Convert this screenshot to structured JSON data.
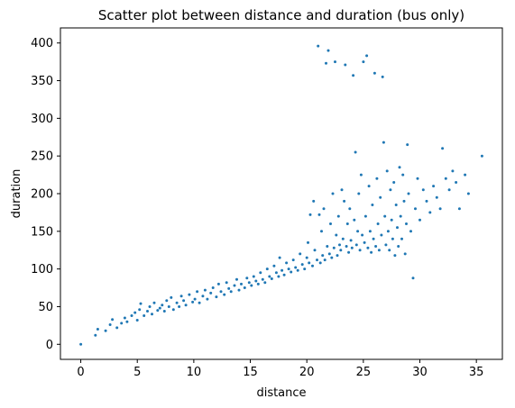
{
  "chart_data": {
    "type": "scatter",
    "title": "Scatter plot between distance and duration (bus only)",
    "xlabel": "distance",
    "ylabel": "duration",
    "xlim": [
      -1.8,
      37.3
    ],
    "ylim": [
      -20,
      420
    ],
    "xticks": [
      0,
      5,
      10,
      15,
      20,
      25,
      30,
      35
    ],
    "yticks": [
      0,
      50,
      100,
      150,
      200,
      250,
      300,
      350,
      400
    ],
    "grid": false,
    "legend": "none",
    "marker_color": "#1f77b4",
    "series": [
      {
        "points": [
          [
            0,
            0
          ],
          [
            1.3,
            12
          ],
          [
            1.5,
            20
          ],
          [
            2.2,
            18
          ],
          [
            2.6,
            26
          ],
          [
            2.8,
            33
          ],
          [
            3.2,
            22
          ],
          [
            3.6,
            28
          ],
          [
            3.9,
            35
          ],
          [
            4.1,
            30
          ],
          [
            4.5,
            38
          ],
          [
            4.8,
            42
          ],
          [
            5.0,
            32
          ],
          [
            5.2,
            46
          ],
          [
            5.3,
            54
          ],
          [
            5.6,
            38
          ],
          [
            5.9,
            44
          ],
          [
            6.1,
            50
          ],
          [
            6.3,
            40
          ],
          [
            6.5,
            55
          ],
          [
            6.8,
            45
          ],
          [
            7.0,
            48
          ],
          [
            7.2,
            52
          ],
          [
            7.4,
            44
          ],
          [
            7.6,
            58
          ],
          [
            7.8,
            50
          ],
          [
            8.0,
            62
          ],
          [
            8.2,
            46
          ],
          [
            8.5,
            55
          ],
          [
            8.7,
            50
          ],
          [
            8.9,
            64
          ],
          [
            9.1,
            58
          ],
          [
            9.3,
            52
          ],
          [
            9.6,
            66
          ],
          [
            9.9,
            56
          ],
          [
            10.1,
            60
          ],
          [
            10.3,
            70
          ],
          [
            10.5,
            55
          ],
          [
            10.8,
            64
          ],
          [
            11.0,
            72
          ],
          [
            11.2,
            60
          ],
          [
            11.5,
            68
          ],
          [
            11.7,
            75
          ],
          [
            12.0,
            63
          ],
          [
            12.2,
            80
          ],
          [
            12.4,
            70
          ],
          [
            12.7,
            66
          ],
          [
            12.9,
            82
          ],
          [
            13.1,
            74
          ],
          [
            13.3,
            70
          ],
          [
            13.6,
            78
          ],
          [
            13.8,
            86
          ],
          [
            14.0,
            72
          ],
          [
            14.2,
            80
          ],
          [
            14.5,
            75
          ],
          [
            14.7,
            88
          ],
          [
            14.9,
            82
          ],
          [
            15.1,
            78
          ],
          [
            15.3,
            90
          ],
          [
            15.5,
            84
          ],
          [
            15.7,
            80
          ],
          [
            15.9,
            95
          ],
          [
            16.1,
            86
          ],
          [
            16.3,
            82
          ],
          [
            16.5,
            100
          ],
          [
            16.7,
            90
          ],
          [
            16.9,
            87
          ],
          [
            17.1,
            104
          ],
          [
            17.3,
            95
          ],
          [
            17.5,
            90
          ],
          [
            17.6,
            115
          ],
          [
            17.8,
            98
          ],
          [
            18.0,
            92
          ],
          [
            18.2,
            108
          ],
          [
            18.4,
            100
          ],
          [
            18.6,
            96
          ],
          [
            18.8,
            112
          ],
          [
            19.0,
            102
          ],
          [
            19.2,
            98
          ],
          [
            19.4,
            120
          ],
          [
            19.6,
            106
          ],
          [
            19.8,
            100
          ],
          [
            20.0,
            115
          ],
          [
            20.1,
            135
          ],
          [
            20.2,
            108
          ],
          [
            20.3,
            172
          ],
          [
            20.5,
            104
          ],
          [
            20.6,
            190
          ],
          [
            20.7,
            125
          ],
          [
            20.9,
            112
          ],
          [
            21.0,
            396
          ],
          [
            21.1,
            172
          ],
          [
            21.2,
            108
          ],
          [
            21.3,
            150
          ],
          [
            21.4,
            118
          ],
          [
            21.5,
            180
          ],
          [
            21.6,
            112
          ],
          [
            21.7,
            373
          ],
          [
            21.8,
            130
          ],
          [
            21.9,
            390
          ],
          [
            22.0,
            120
          ],
          [
            22.1,
            160
          ],
          [
            22.2,
            115
          ],
          [
            22.3,
            200
          ],
          [
            22.4,
            128
          ],
          [
            22.5,
            375
          ],
          [
            22.6,
            145
          ],
          [
            22.7,
            118
          ],
          [
            22.8,
            170
          ],
          [
            22.9,
            132
          ],
          [
            23.0,
            125
          ],
          [
            23.1,
            205
          ],
          [
            23.2,
            140
          ],
          [
            23.3,
            190
          ],
          [
            23.4,
            371
          ],
          [
            23.5,
            130
          ],
          [
            23.6,
            160
          ],
          [
            23.7,
            122
          ],
          [
            23.8,
            180
          ],
          [
            23.9,
            138
          ],
          [
            24.0,
            128
          ],
          [
            24.1,
            357
          ],
          [
            24.2,
            165
          ],
          [
            24.3,
            255
          ],
          [
            24.4,
            132
          ],
          [
            24.5,
            150
          ],
          [
            24.6,
            200
          ],
          [
            24.7,
            125
          ],
          [
            24.8,
            225
          ],
          [
            24.9,
            145
          ],
          [
            25.0,
            375
          ],
          [
            25.1,
            135
          ],
          [
            25.2,
            170
          ],
          [
            25.3,
            383
          ],
          [
            25.4,
            128
          ],
          [
            25.5,
            210
          ],
          [
            25.6,
            150
          ],
          [
            25.7,
            122
          ],
          [
            25.8,
            185
          ],
          [
            25.9,
            140
          ],
          [
            26.0,
            360
          ],
          [
            26.1,
            130
          ],
          [
            26.2,
            220
          ],
          [
            26.3,
            160
          ],
          [
            26.4,
            125
          ],
          [
            26.5,
            195
          ],
          [
            26.6,
            145
          ],
          [
            26.7,
            355
          ],
          [
            26.8,
            268
          ],
          [
            26.9,
            170
          ],
          [
            27.0,
            132
          ],
          [
            27.1,
            230
          ],
          [
            27.2,
            150
          ],
          [
            27.3,
            125
          ],
          [
            27.4,
            205
          ],
          [
            27.5,
            165
          ],
          [
            27.6,
            140
          ],
          [
            27.7,
            215
          ],
          [
            27.8,
            118
          ],
          [
            27.9,
            185
          ],
          [
            28.0,
            155
          ],
          [
            28.1,
            130
          ],
          [
            28.2,
            235
          ],
          [
            28.3,
            170
          ],
          [
            28.4,
            140
          ],
          [
            28.5,
            225
          ],
          [
            28.6,
            190
          ],
          [
            28.7,
            120
          ],
          [
            28.8,
            160
          ],
          [
            28.9,
            265
          ],
          [
            29.0,
            200
          ],
          [
            29.2,
            150
          ],
          [
            29.4,
            88
          ],
          [
            29.6,
            180
          ],
          [
            29.8,
            220
          ],
          [
            30.0,
            165
          ],
          [
            30.3,
            205
          ],
          [
            30.6,
            190
          ],
          [
            30.9,
            175
          ],
          [
            31.2,
            210
          ],
          [
            31.5,
            195
          ],
          [
            31.8,
            180
          ],
          [
            32.0,
            260
          ],
          [
            32.3,
            220
          ],
          [
            32.6,
            205
          ],
          [
            32.9,
            230
          ],
          [
            33.2,
            215
          ],
          [
            33.5,
            180
          ],
          [
            34.0,
            225
          ],
          [
            34.3,
            200
          ],
          [
            35.5,
            250
          ]
        ]
      }
    ]
  }
}
